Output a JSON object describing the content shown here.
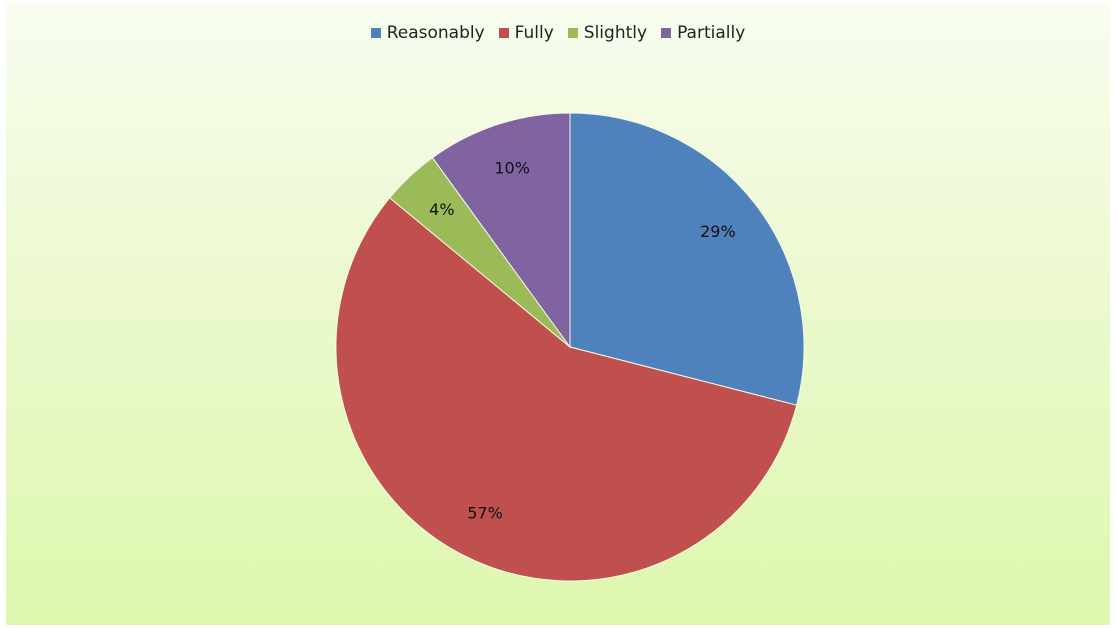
{
  "chart_data": {
    "type": "pie",
    "title": "",
    "categories": [
      "Reasonably",
      "Fully",
      "Slightly",
      "Partially"
    ],
    "values": [
      29,
      57,
      4,
      10
    ],
    "data_labels": [
      "29%",
      "57%",
      "4%",
      "10%"
    ],
    "colors": [
      "#4f81bd",
      "#c0504d",
      "#9bbb59",
      "#8064a2"
    ],
    "start_angle": "12-o'clock",
    "direction": "clockwise",
    "legend_position": "top",
    "legend": [
      {
        "label": "Reasonably",
        "color": "#4f81bd"
      },
      {
        "label": "Fully",
        "color": "#c0504d"
      },
      {
        "label": "Slightly",
        "color": "#9bbb59"
      },
      {
        "label": "Partially",
        "color": "#8064a2"
      }
    ]
  }
}
